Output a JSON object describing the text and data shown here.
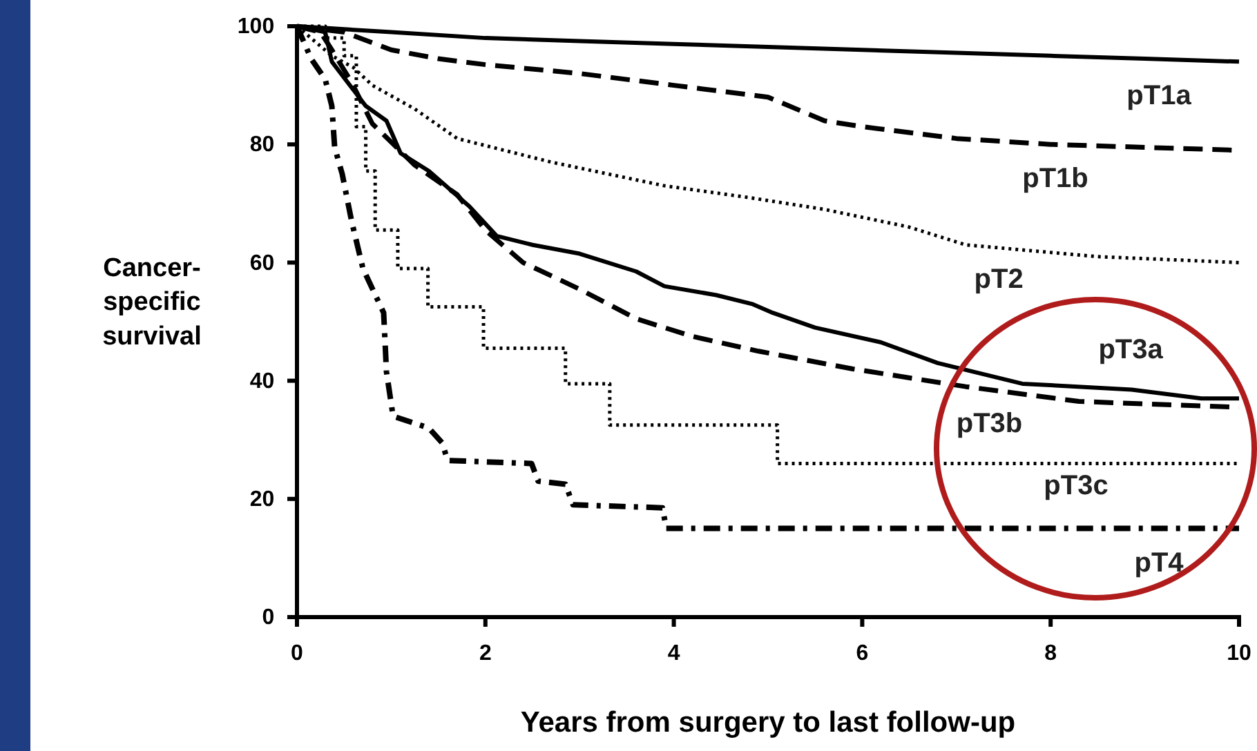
{
  "chart_data": {
    "type": "line",
    "xlabel": "Years from surgery to last follow-up",
    "ylabel": "Cancer-specific survival",
    "xlim": [
      0,
      10
    ],
    "ylim": [
      0,
      100
    ],
    "xticks": [
      0,
      2,
      4,
      6,
      8,
      10
    ],
    "yticks": [
      0,
      20,
      40,
      60,
      80,
      100
    ],
    "grid": false,
    "series": [
      {
        "name": "pT1a",
        "color": "#000000",
        "line_style": "solid",
        "x": [
          0,
          0.5,
          1,
          2,
          3,
          4,
          5,
          6,
          7,
          8,
          9,
          10
        ],
        "values": [
          100,
          99.5,
          99,
          98,
          97.5,
          97,
          96.5,
          96,
          95.5,
          95,
          94.5,
          94
        ]
      },
      {
        "name": "pT1b",
        "color": "#000000",
        "line_style": "dashed",
        "x": [
          0,
          0.5,
          1,
          1.5,
          2,
          3,
          4,
          5,
          5.6,
          6,
          7,
          8,
          9,
          10
        ],
        "values": [
          100,
          99,
          96,
          94.5,
          93.5,
          92,
          90,
          88,
          84,
          83,
          81,
          80,
          79.5,
          79
        ]
      },
      {
        "name": "pT2",
        "color": "#000000",
        "line_style": "dotted",
        "x": [
          0,
          0.37,
          0.6,
          0.8,
          1.25,
          1.7,
          2.7,
          3.9,
          4.8,
          5.6,
          6.5,
          7.1,
          8.5,
          10
        ],
        "values": [
          100,
          95,
          93,
          90,
          86,
          81,
          77,
          73,
          71,
          69,
          66,
          63,
          61,
          60
        ]
      },
      {
        "name": "pT3a",
        "color": "#000000",
        "line_style": "solid",
        "x": [
          0,
          0.3,
          0.37,
          0.73,
          0.95,
          1.1,
          1.4,
          1.83,
          2.12,
          2.5,
          3,
          3.6,
          3.9,
          4.45,
          4.83,
          5.05,
          5.5,
          6.2,
          6.8,
          7.7,
          8.86,
          9.6,
          10
        ],
        "values": [
          100,
          99,
          94,
          86.5,
          84,
          78.5,
          75.5,
          69.5,
          64.5,
          63,
          61.5,
          58.5,
          56,
          54.5,
          53,
          51.5,
          49,
          46.5,
          43,
          39.5,
          38.5,
          37,
          37
        ]
      },
      {
        "name": "pT3b",
        "color": "#000000",
        "line_style": "dashed",
        "x": [
          0,
          0.25,
          0.37,
          0.58,
          0.8,
          1.25,
          1.7,
          2,
          2.4,
          3,
          3.6,
          4.2,
          4.9,
          5.9,
          7.1,
          8.3,
          10
        ],
        "values": [
          100,
          99,
          96,
          90.5,
          83.5,
          76.5,
          71.5,
          65.5,
          60,
          55.5,
          50.5,
          47.5,
          45,
          42,
          39,
          36.5,
          35.5
        ]
      },
      {
        "name": "pT3c",
        "type": "step",
        "color": "#000000",
        "line_style": "dotted",
        "x": [
          0,
          0.3,
          0.5,
          0.63,
          0.73,
          0.83,
          1.07,
          1.39,
          1.98,
          2.85,
          3.32,
          5.1,
          10
        ],
        "values": [
          100,
          98,
          95,
          83,
          75.5,
          65.5,
          59,
          52.5,
          45.5,
          39.5,
          32.5,
          26,
          26
        ]
      },
      {
        "name": "pT4",
        "color": "#000000",
        "line_style": "dashdot",
        "x": [
          0,
          0.15,
          0.3,
          0.37,
          0.4,
          0.48,
          0.58,
          0.7,
          0.92,
          0.95,
          1.02,
          1.4,
          1.54,
          1.6,
          2.49,
          2.56,
          2.85,
          2.93,
          3.88,
          3.92,
          10
        ],
        "values": [
          100,
          94.5,
          91,
          86.5,
          79.5,
          75,
          67,
          59,
          51.5,
          41.5,
          34,
          32,
          29.5,
          26.5,
          26,
          23,
          22.5,
          19,
          18.5,
          15,
          15
        ]
      }
    ]
  }
}
